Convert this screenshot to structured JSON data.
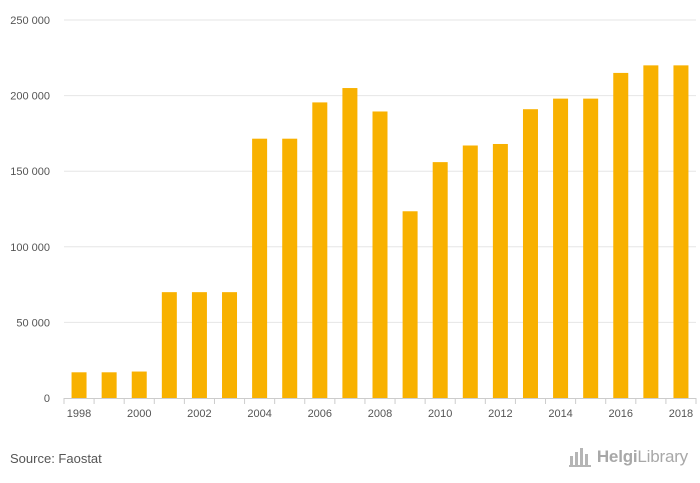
{
  "footer": {
    "source": "Source: Faostat",
    "brand_prefix": "Helgi",
    "brand_suffix": "Library",
    "brand_icon": "bar-stripes-logo-icon"
  },
  "colors": {
    "bar": "#F8B100",
    "grid": "#e6e6e6",
    "axis": "#cccccc",
    "text": "#555555"
  },
  "chart_data": {
    "type": "bar",
    "title": "",
    "xlabel": "",
    "ylabel": "",
    "ylim": [
      0,
      250000
    ],
    "yticks": [
      0,
      50000,
      100000,
      150000,
      200000,
      250000
    ],
    "ytick_labels": [
      "0",
      "50 000",
      "100 000",
      "150 000",
      "200 000",
      "250 000"
    ],
    "grid": true,
    "categories": [
      "1998",
      "1999",
      "2000",
      "2001",
      "2002",
      "2003",
      "2004",
      "2005",
      "2006",
      "2007",
      "2008",
      "2009",
      "2010",
      "2011",
      "2012",
      "2013",
      "2014",
      "2015",
      "2016",
      "2017",
      "2018"
    ],
    "xtick_labels": [
      "1998",
      "2000",
      "2002",
      "2004",
      "2006",
      "2008",
      "2010",
      "2012",
      "2014",
      "2016",
      "2018"
    ],
    "values": [
      17000,
      17000,
      17500,
      70000,
      70000,
      70000,
      171500,
      171500,
      195500,
      205000,
      189500,
      123500,
      156000,
      167000,
      168000,
      191000,
      198000,
      198000,
      215000,
      220000,
      220000
    ]
  }
}
